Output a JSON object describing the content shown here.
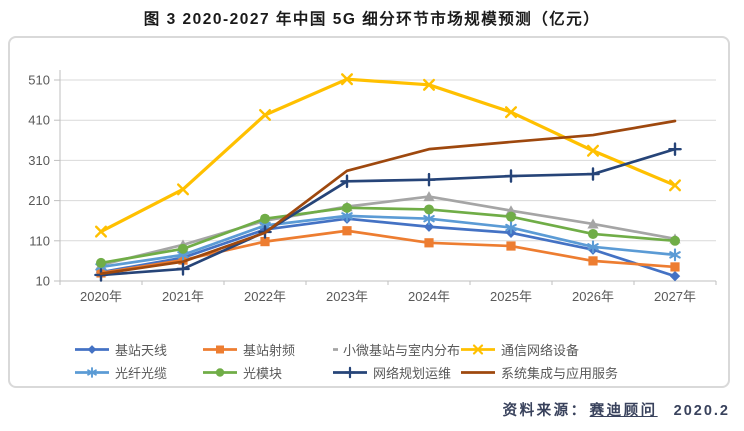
{
  "page": {
    "title": "图 3 2020-2027 年中国 5G 细分环节市场规模预测（亿元）",
    "source": {
      "prefix": "资料来源：",
      "org": "赛迪顾问",
      "date": "2020.2"
    }
  },
  "chart_data": {
    "type": "line",
    "title": "图 3 2020-2027 年中国 5G 细分环节市场规模预测（亿元）",
    "unit": "亿元",
    "categories": [
      "2020年",
      "2021年",
      "2022年",
      "2023年",
      "2024年",
      "2025年",
      "2026年",
      "2027年"
    ],
    "series": [
      {
        "name": "基站天线",
        "color": "#4472C4",
        "marker": "diamond",
        "values": [
          32,
          68,
          138,
          165,
          145,
          130,
          88,
          22
        ]
      },
      {
        "name": "基站射频",
        "color": "#ED7D31",
        "marker": "square",
        "values": [
          30,
          62,
          108,
          135,
          105,
          97,
          60,
          45
        ]
      },
      {
        "name": "小微基站与室内分布",
        "color": "#A5A5A5",
        "marker": "triangle",
        "values": [
          50,
          100,
          160,
          195,
          220,
          185,
          152,
          115
        ]
      },
      {
        "name": "通信网络设备",
        "color": "#FFC000",
        "marker": "x",
        "values": [
          133,
          238,
          423,
          512,
          498,
          430,
          334,
          248
        ]
      },
      {
        "name": "光纤光缆",
        "color": "#5B9BD5",
        "marker": "asterisk",
        "values": [
          45,
          75,
          148,
          172,
          165,
          143,
          95,
          75
        ]
      },
      {
        "name": "光模块",
        "color": "#70AD47",
        "marker": "circle",
        "values": [
          55,
          90,
          165,
          192,
          188,
          170,
          127,
          110
        ]
      },
      {
        "name": "网络规划运维",
        "color": "#264478",
        "marker": "plus",
        "values": [
          25,
          40,
          132,
          258,
          262,
          271,
          276,
          338
        ]
      },
      {
        "name": "系统集成与应用服务",
        "color": "#9E480E",
        "marker": "none",
        "values": [
          28,
          58,
          130,
          284,
          338,
          356,
          373,
          408
        ]
      }
    ],
    "ylim": [
      10,
      510
    ],
    "yticks": [
      10,
      110,
      210,
      310,
      410,
      510
    ],
    "grid": true,
    "legend_position": "bottom",
    "axis_label_color": "#595959",
    "gridline_color": "#d9d9d9",
    "axis_line_color": "#bfbfbf"
  }
}
